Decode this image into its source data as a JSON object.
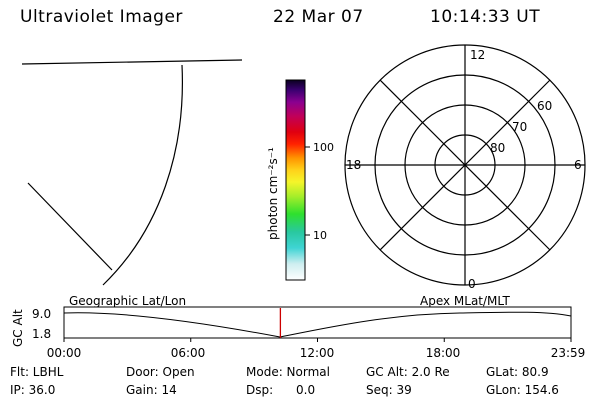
{
  "header": {
    "instrument": "Ultraviolet Imager",
    "date": "22 Mar 07",
    "time": "10:14:33 UT"
  },
  "colorbar": {
    "unit_label": "photon cm⁻²s⁻¹",
    "ticks": [
      "100",
      "10"
    ]
  },
  "polar_plot": {
    "mlt_labels": [
      "12",
      "18",
      "6",
      "0"
    ],
    "lat_labels": [
      "60",
      "70",
      "80"
    ]
  },
  "timeline": {
    "ylabel": "GC Alt",
    "y_ticks": [
      "9.0",
      "1.8"
    ],
    "left_caption": "Geographic Lat/Lon",
    "right_caption": "Apex MLat/MLT",
    "x_ticks": [
      "00:00",
      "06:00",
      "12:00",
      "18:00",
      "23:59"
    ],
    "current_time_fraction": 0.4268
  },
  "info_rows": [
    [
      "Flt: LBHL",
      "Door: Open",
      "Mode: Normal",
      "GC Alt: 2.0 Re",
      "GLat: 80.9"
    ],
    [
      "IP: 36.0",
      "Gain: 14",
      "Dsp:      0.0",
      "Seq: 39",
      "GLon: 154.6"
    ]
  ],
  "colors": {
    "marker": "#cc0000",
    "line": "#000000"
  }
}
